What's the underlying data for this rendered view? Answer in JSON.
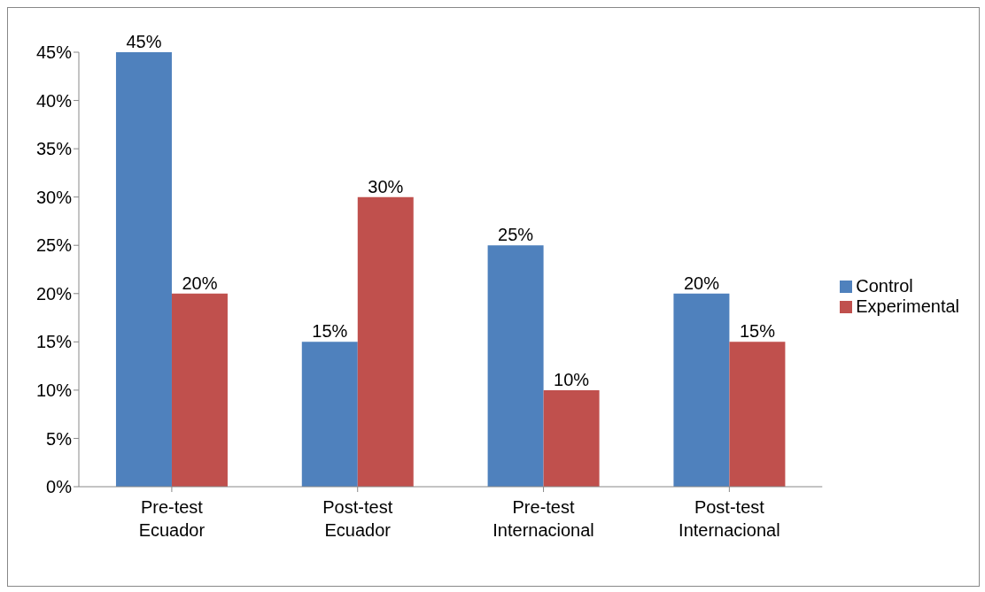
{
  "chart_data": {
    "type": "bar",
    "categories": [
      "Pre-test Ecuador",
      "Post-test Ecuador",
      "Pre-test Internacional",
      "Post-test Internacional"
    ],
    "series": [
      {
        "name": "Control",
        "color": "#4f81bd",
        "values": [
          45,
          15,
          25,
          20
        ],
        "value_labels": [
          "45%",
          "15%",
          "25%",
          "20%"
        ]
      },
      {
        "name": "Experimental",
        "color": "#c0504d",
        "values": [
          20,
          30,
          10,
          15
        ],
        "value_labels": [
          "20%",
          "30%",
          "10%",
          "15%"
        ]
      }
    ],
    "ylim": [
      0,
      45
    ],
    "yticks": [
      {
        "value": 0,
        "label": "0%"
      },
      {
        "value": 5,
        "label": "5%"
      },
      {
        "value": 10,
        "label": "10%"
      },
      {
        "value": 15,
        "label": "15%"
      },
      {
        "value": 20,
        "label": "20%"
      },
      {
        "value": 25,
        "label": "25%"
      },
      {
        "value": 30,
        "label": "30%"
      },
      {
        "value": 35,
        "label": "35%"
      },
      {
        "value": 40,
        "label": "40%"
      },
      {
        "value": 45,
        "label": "45%"
      }
    ],
    "legend": "right"
  }
}
